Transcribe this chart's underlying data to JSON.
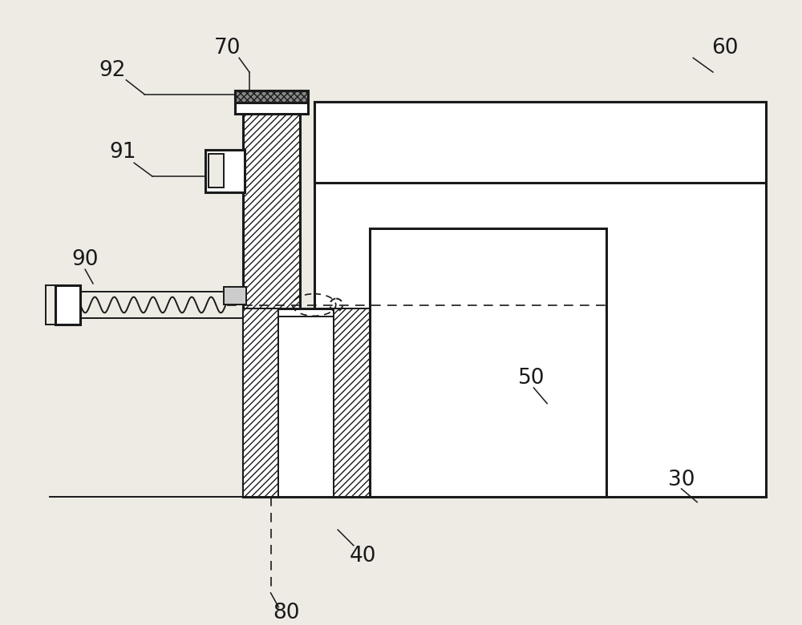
{
  "bg": "#eeebe5",
  "lc": "#1a1a1a",
  "figsize": [
    10.0,
    7.8
  ],
  "dpi": 100,
  "lw_main": 2.2,
  "lw_thin": 1.4,
  "lw_dash": 1.2,
  "label_fontsize": 19
}
